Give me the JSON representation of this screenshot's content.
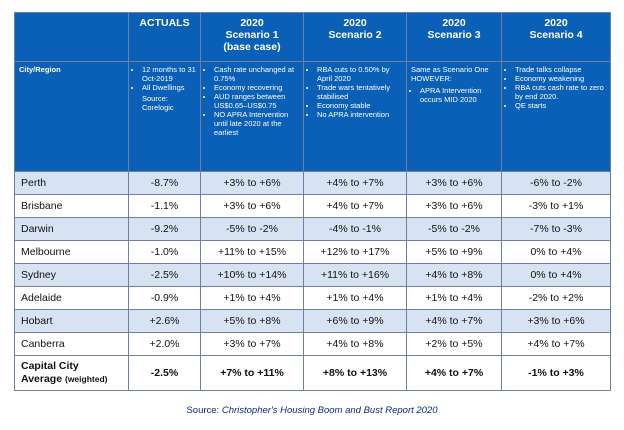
{
  "headers": [
    {
      "line1": "",
      "line2": ""
    },
    {
      "line1": "ACTUALS",
      "line2": "",
      "line3": ""
    },
    {
      "line1": "2020",
      "line2": "Scenario 1",
      "line3": "(base case)"
    },
    {
      "line1": "2020",
      "line2": "Scenario 2",
      "line3": ""
    },
    {
      "line1": "2020",
      "line2": "Scenario 3",
      "line3": ""
    },
    {
      "line1": "2020",
      "line2": "Scenario 4",
      "line3": ""
    }
  ],
  "region_label": "City/Region",
  "actuals_desc": {
    "bullets": [
      "12 months to 31 Oct-2019",
      "All Dwellings"
    ],
    "source": "Source: Corelogic"
  },
  "scenario1_desc": [
    "Cash rate unchanged at 0.75%",
    "Economy recovering",
    "AUD ranges between US$0.65–US$0.75",
    "NO APRA Intervention until late 2020 at the earliest"
  ],
  "scenario2_desc": [
    "RBA cuts to 0.50% by April 2020",
    "Trade wars tentatively stabilised",
    "Economy stable",
    "No APRA intervention"
  ],
  "scenario3_desc": {
    "intro": "Same as Scenario One HOWEVER:",
    "bullets": [
      "APRA Intervention occurs MID 2020"
    ]
  },
  "scenario4_desc": [
    "Trade talks collapse",
    "Economy weakening",
    "RBA cuts cash rate to zero by end 2020.",
    "QE starts"
  ],
  "rows": [
    {
      "city": "Perth",
      "actual": "-8.7%",
      "s1": "+3% to +6%",
      "s2": "+4% to +7%",
      "s3": "+3% to +6%",
      "s4": "-6% to -2%"
    },
    {
      "city": "Brisbane",
      "actual": "-1.1%",
      "s1": "+3% to +6%",
      "s2": "+4% to +7%",
      "s3": "+3% to +6%",
      "s4": "-3% to +1%"
    },
    {
      "city": "Darwin",
      "actual": "-9.2%",
      "s1": "-5% to -2%",
      "s2": "-4% to -1%",
      "s3": "-5% to -2%",
      "s4": "-7% to -3%"
    },
    {
      "city": "Melbourne",
      "actual": "-1.0%",
      "s1": "+11% to +15%",
      "s2": "+12% to +17%",
      "s3": "+5% to +9%",
      "s4": "0% to +4%"
    },
    {
      "city": "Sydney",
      "actual": "-2.5%",
      "s1": "+10% to +14%",
      "s2": "+11% to +16%",
      "s3": "+4% to +8%",
      "s4": "0% to +4%"
    },
    {
      "city": "Adelaide",
      "actual": "-0.9%",
      "s1": "+1% to +4%",
      "s2": "+1% to +4%",
      "s3": "+1% to +4%",
      "s4": "-2% to +2%"
    },
    {
      "city": "Hobart",
      "actual": "+2.6%",
      "s1": "+5% to +8%",
      "s2": "+6% to +9%",
      "s3": "+4% to +7%",
      "s4": "+3% to +6%"
    },
    {
      "city": "Canberra",
      "actual": "+2.0%",
      "s1": "+3% to +7%",
      "s2": "+4% to +8%",
      "s3": "+2% to +5%",
      "s4": "+4% to +7%"
    }
  ],
  "total": {
    "label1": "Capital City",
    "label2": "Average",
    "label3": "(weighted)",
    "actual": "-2.5%",
    "s1": "+7% to +11%",
    "s2": "+8% to +13%",
    "s3": "+4% to +7%",
    "s4": "-1% to +3%"
  },
  "source_prefix": "Source: ",
  "source_title": "Christopher's Housing Boom and Bust Report 2020",
  "colors": {
    "header_bg": "#0a60b6",
    "band": "#d7e3f3"
  }
}
